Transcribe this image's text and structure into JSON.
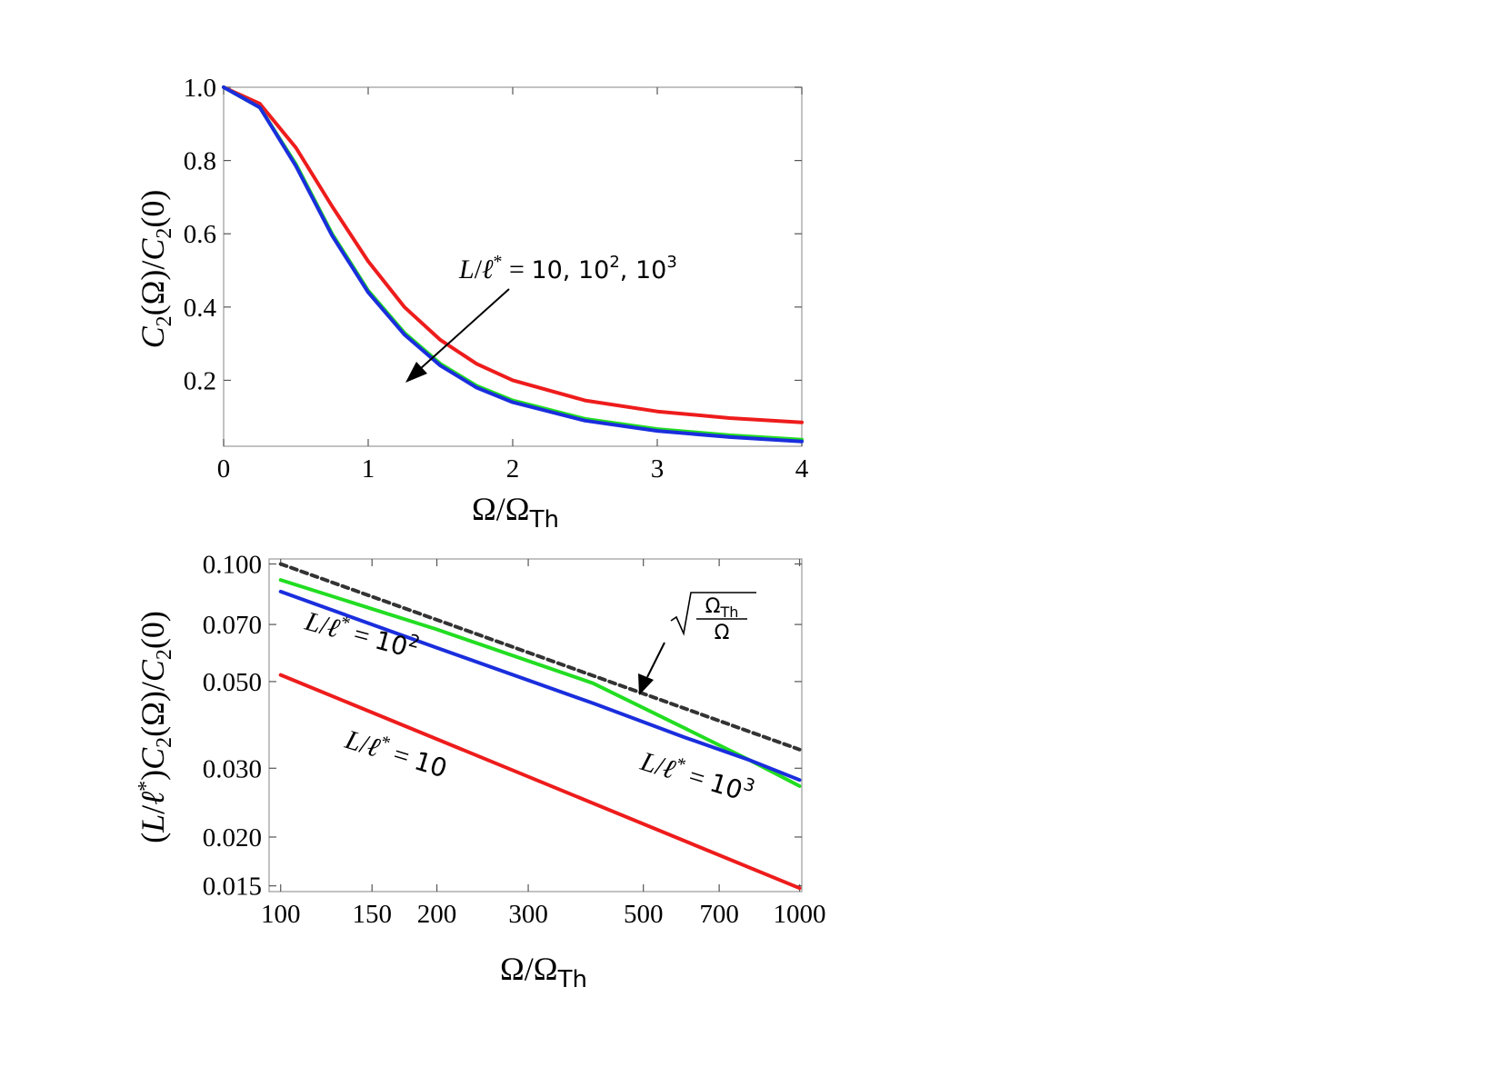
{
  "chart_data": [
    {
      "type": "line",
      "xlabel": "Ω/Ω_Th",
      "ylabel": "C₂(Ω)/C₂(0)",
      "xlim": [
        0,
        4
      ],
      "ylim": [
        0.02,
        1.0
      ],
      "x_ticks": [
        "0",
        "1",
        "2",
        "3",
        "4"
      ],
      "y_ticks": [
        "0.2",
        "0.4",
        "0.6",
        "0.8",
        "1.0"
      ],
      "grid": false,
      "annotation": "L/ℓ* = 10, 10², 10³",
      "series": [
        {
          "color": "#ee1c1c",
          "x": [
            0,
            0.25,
            0.5,
            0.75,
            1.0,
            1.25,
            1.5,
            1.75,
            2.0,
            2.5,
            3.0,
            3.5,
            4.0
          ],
          "y": [
            1.0,
            0.955,
            0.835,
            0.675,
            0.525,
            0.4,
            0.31,
            0.245,
            0.2,
            0.145,
            0.115,
            0.097,
            0.085
          ]
        },
        {
          "color": "#22dd22",
          "x": [
            0,
            0.25,
            0.5,
            0.75,
            1.0,
            1.25,
            1.5,
            1.75,
            2.0,
            2.5,
            3.0,
            3.5,
            4.0
          ],
          "y": [
            1.0,
            0.945,
            0.79,
            0.6,
            0.445,
            0.33,
            0.245,
            0.185,
            0.145,
            0.095,
            0.067,
            0.05,
            0.038
          ]
        },
        {
          "color": "#1a2edd",
          "x": [
            0,
            0.25,
            0.5,
            0.75,
            1.0,
            1.25,
            1.5,
            1.75,
            2.0,
            2.5,
            3.0,
            3.5,
            4.0
          ],
          "y": [
            1.0,
            0.945,
            0.785,
            0.595,
            0.44,
            0.325,
            0.24,
            0.18,
            0.14,
            0.09,
            0.062,
            0.045,
            0.033
          ]
        }
      ]
    },
    {
      "type": "line",
      "xlabel": "Ω/Ω_Th",
      "ylabel": "(L/ℓ*)C₂(Ω)/C₂(0)",
      "xscale": "log",
      "yscale": "log",
      "xlim": [
        95,
        1010
      ],
      "ylim": [
        0.0145,
        0.103
      ],
      "x_ticks": [
        "100",
        "150",
        "200",
        "300",
        "500",
        "700",
        "1000"
      ],
      "y_ticks": [
        "0.015",
        "0.020",
        "0.030",
        "0.050",
        "0.070",
        "0.100"
      ],
      "grid": false,
      "annotations": [
        "L/ℓ* = 10²",
        "L/ℓ* = 10",
        "L/ℓ* = 10³",
        "√(Ω_Th/Ω)"
      ],
      "series": [
        {
          "color": "#22dd22",
          "x": [
            100,
            200,
            400,
            600,
            800,
            1000
          ],
          "y": [
            0.091,
            0.068,
            0.0495,
            0.038,
            0.0315,
            0.027
          ]
        },
        {
          "color": "#1a2edd",
          "x": [
            100,
            200,
            400,
            600,
            800,
            1000
          ],
          "y": [
            0.085,
            0.061,
            0.044,
            0.036,
            0.0315,
            0.028
          ]
        },
        {
          "color": "#ee1c1c",
          "x": [
            100,
            1000
          ],
          "y": [
            0.052,
            0.0148
          ]
        },
        {
          "color": "#333333",
          "dashed": true,
          "x": [
            100,
            1000
          ],
          "y": [
            0.1,
            0.0335
          ]
        }
      ]
    }
  ]
}
